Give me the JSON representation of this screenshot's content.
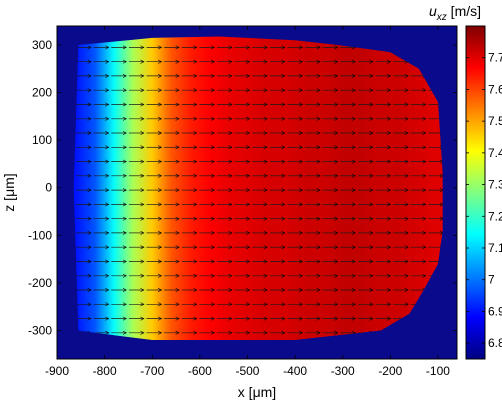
{
  "chart_data": {
    "type": "heatmap",
    "title_symbol": "u",
    "title_subscript": "xz",
    "title_unit": " [m/s]",
    "xlabel": "x [μm]",
    "ylabel": "z [μm]",
    "xlim": [
      -900,
      -60
    ],
    "ylim": [
      -360,
      340
    ],
    "xticks": [
      -900,
      -800,
      -700,
      -600,
      -500,
      -400,
      -300,
      -200,
      -100
    ],
    "yticks": [
      300,
      200,
      100,
      0,
      -100,
      -200,
      -300
    ],
    "colorbar": {
      "min": 6.75,
      "max": 7.8,
      "ticks": [
        7.7,
        7.6,
        7.5,
        7.4,
        7.3,
        7.2,
        7.1,
        7,
        6.9,
        6.8
      ],
      "colormap": "jet"
    },
    "background_color": "#0a0a8c",
    "velocity_profile": {
      "x": [
        -860,
        -820,
        -780,
        -740,
        -700,
        -660,
        -620,
        -580,
        -540,
        -500,
        -460,
        -420,
        -380,
        -340,
        -300,
        -260,
        -220,
        -180,
        -140,
        -100
      ],
      "u": [
        6.9,
        6.97,
        7.15,
        7.32,
        7.46,
        7.58,
        7.64,
        7.67,
        7.69,
        7.7,
        7.71,
        7.71,
        7.72,
        7.72,
        7.73,
        7.73,
        7.72,
        7.72,
        7.71,
        7.7
      ]
    },
    "domain_outline": [
      {
        "x": -855,
        "z": 300
      },
      {
        "x": -700,
        "z": 315
      },
      {
        "x": -560,
        "z": 318
      },
      {
        "x": -400,
        "z": 310
      },
      {
        "x": -310,
        "z": 300
      },
      {
        "x": -200,
        "z": 285
      },
      {
        "x": -140,
        "z": 250
      },
      {
        "x": -100,
        "z": 180
      },
      {
        "x": -90,
        "z": 30
      },
      {
        "x": -90,
        "z": -90
      },
      {
        "x": -100,
        "z": -160
      },
      {
        "x": -130,
        "z": -215
      },
      {
        "x": -160,
        "z": -265
      },
      {
        "x": -220,
        "z": -300
      },
      {
        "x": -400,
        "z": -320
      },
      {
        "x": -700,
        "z": -320
      },
      {
        "x": -780,
        "z": -310
      },
      {
        "x": -855,
        "z": -300
      },
      {
        "x": -865,
        "z": 0
      }
    ],
    "arrows": {
      "z_rows": [
        295,
        265,
        235,
        205,
        175,
        145,
        115,
        85,
        55,
        25,
        -5,
        -35,
        -65,
        -95,
        -125,
        -155,
        -185,
        -215,
        -245,
        -275,
        -305
      ],
      "x_start": -860,
      "x_step": 37,
      "direction": "+x"
    }
  }
}
